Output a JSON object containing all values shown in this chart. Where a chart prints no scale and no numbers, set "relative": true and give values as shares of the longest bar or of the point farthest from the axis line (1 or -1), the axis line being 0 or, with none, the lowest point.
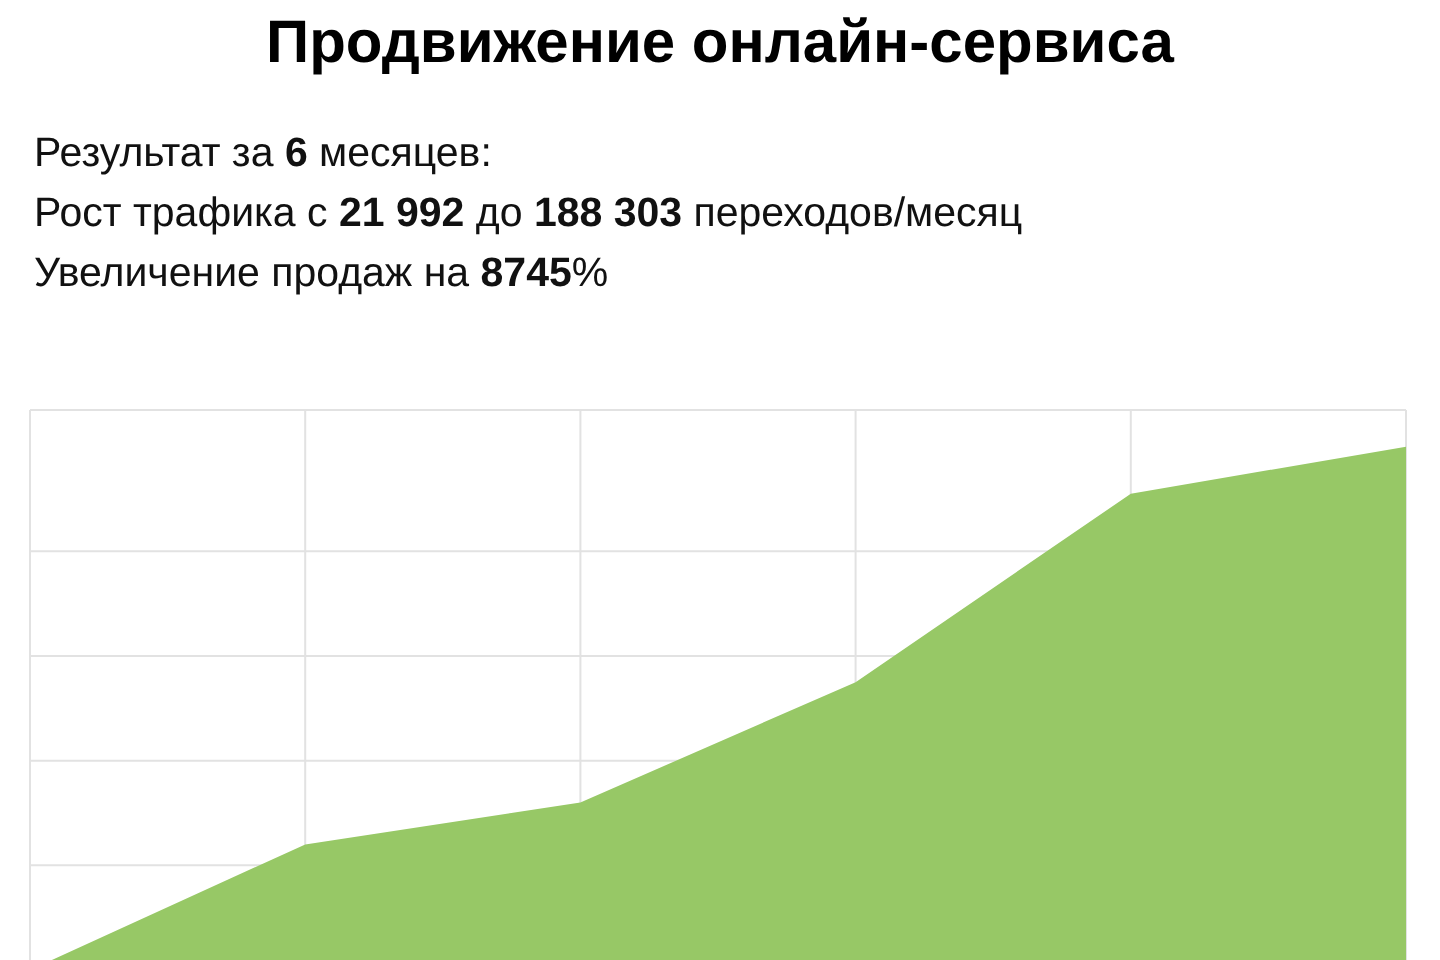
{
  "chart_data": {
    "type": "area",
    "title": "Продвижение онлайн-сервиса",
    "annotations": [
      "Результат за 6 месяцев:",
      "Рост трафика с 21 992 до 188 303 переходов/месяц",
      "Увеличение продаж на 8745%"
    ],
    "categories": [
      null,
      null,
      null,
      null,
      null,
      null
    ],
    "relative": true,
    "series": [
      {
        "color": "#97c866",
        "values": [
          0,
          0.24,
          0.32,
          0.55,
          0.91,
          1
        ]
      }
    ],
    "grid": true
  }
}
